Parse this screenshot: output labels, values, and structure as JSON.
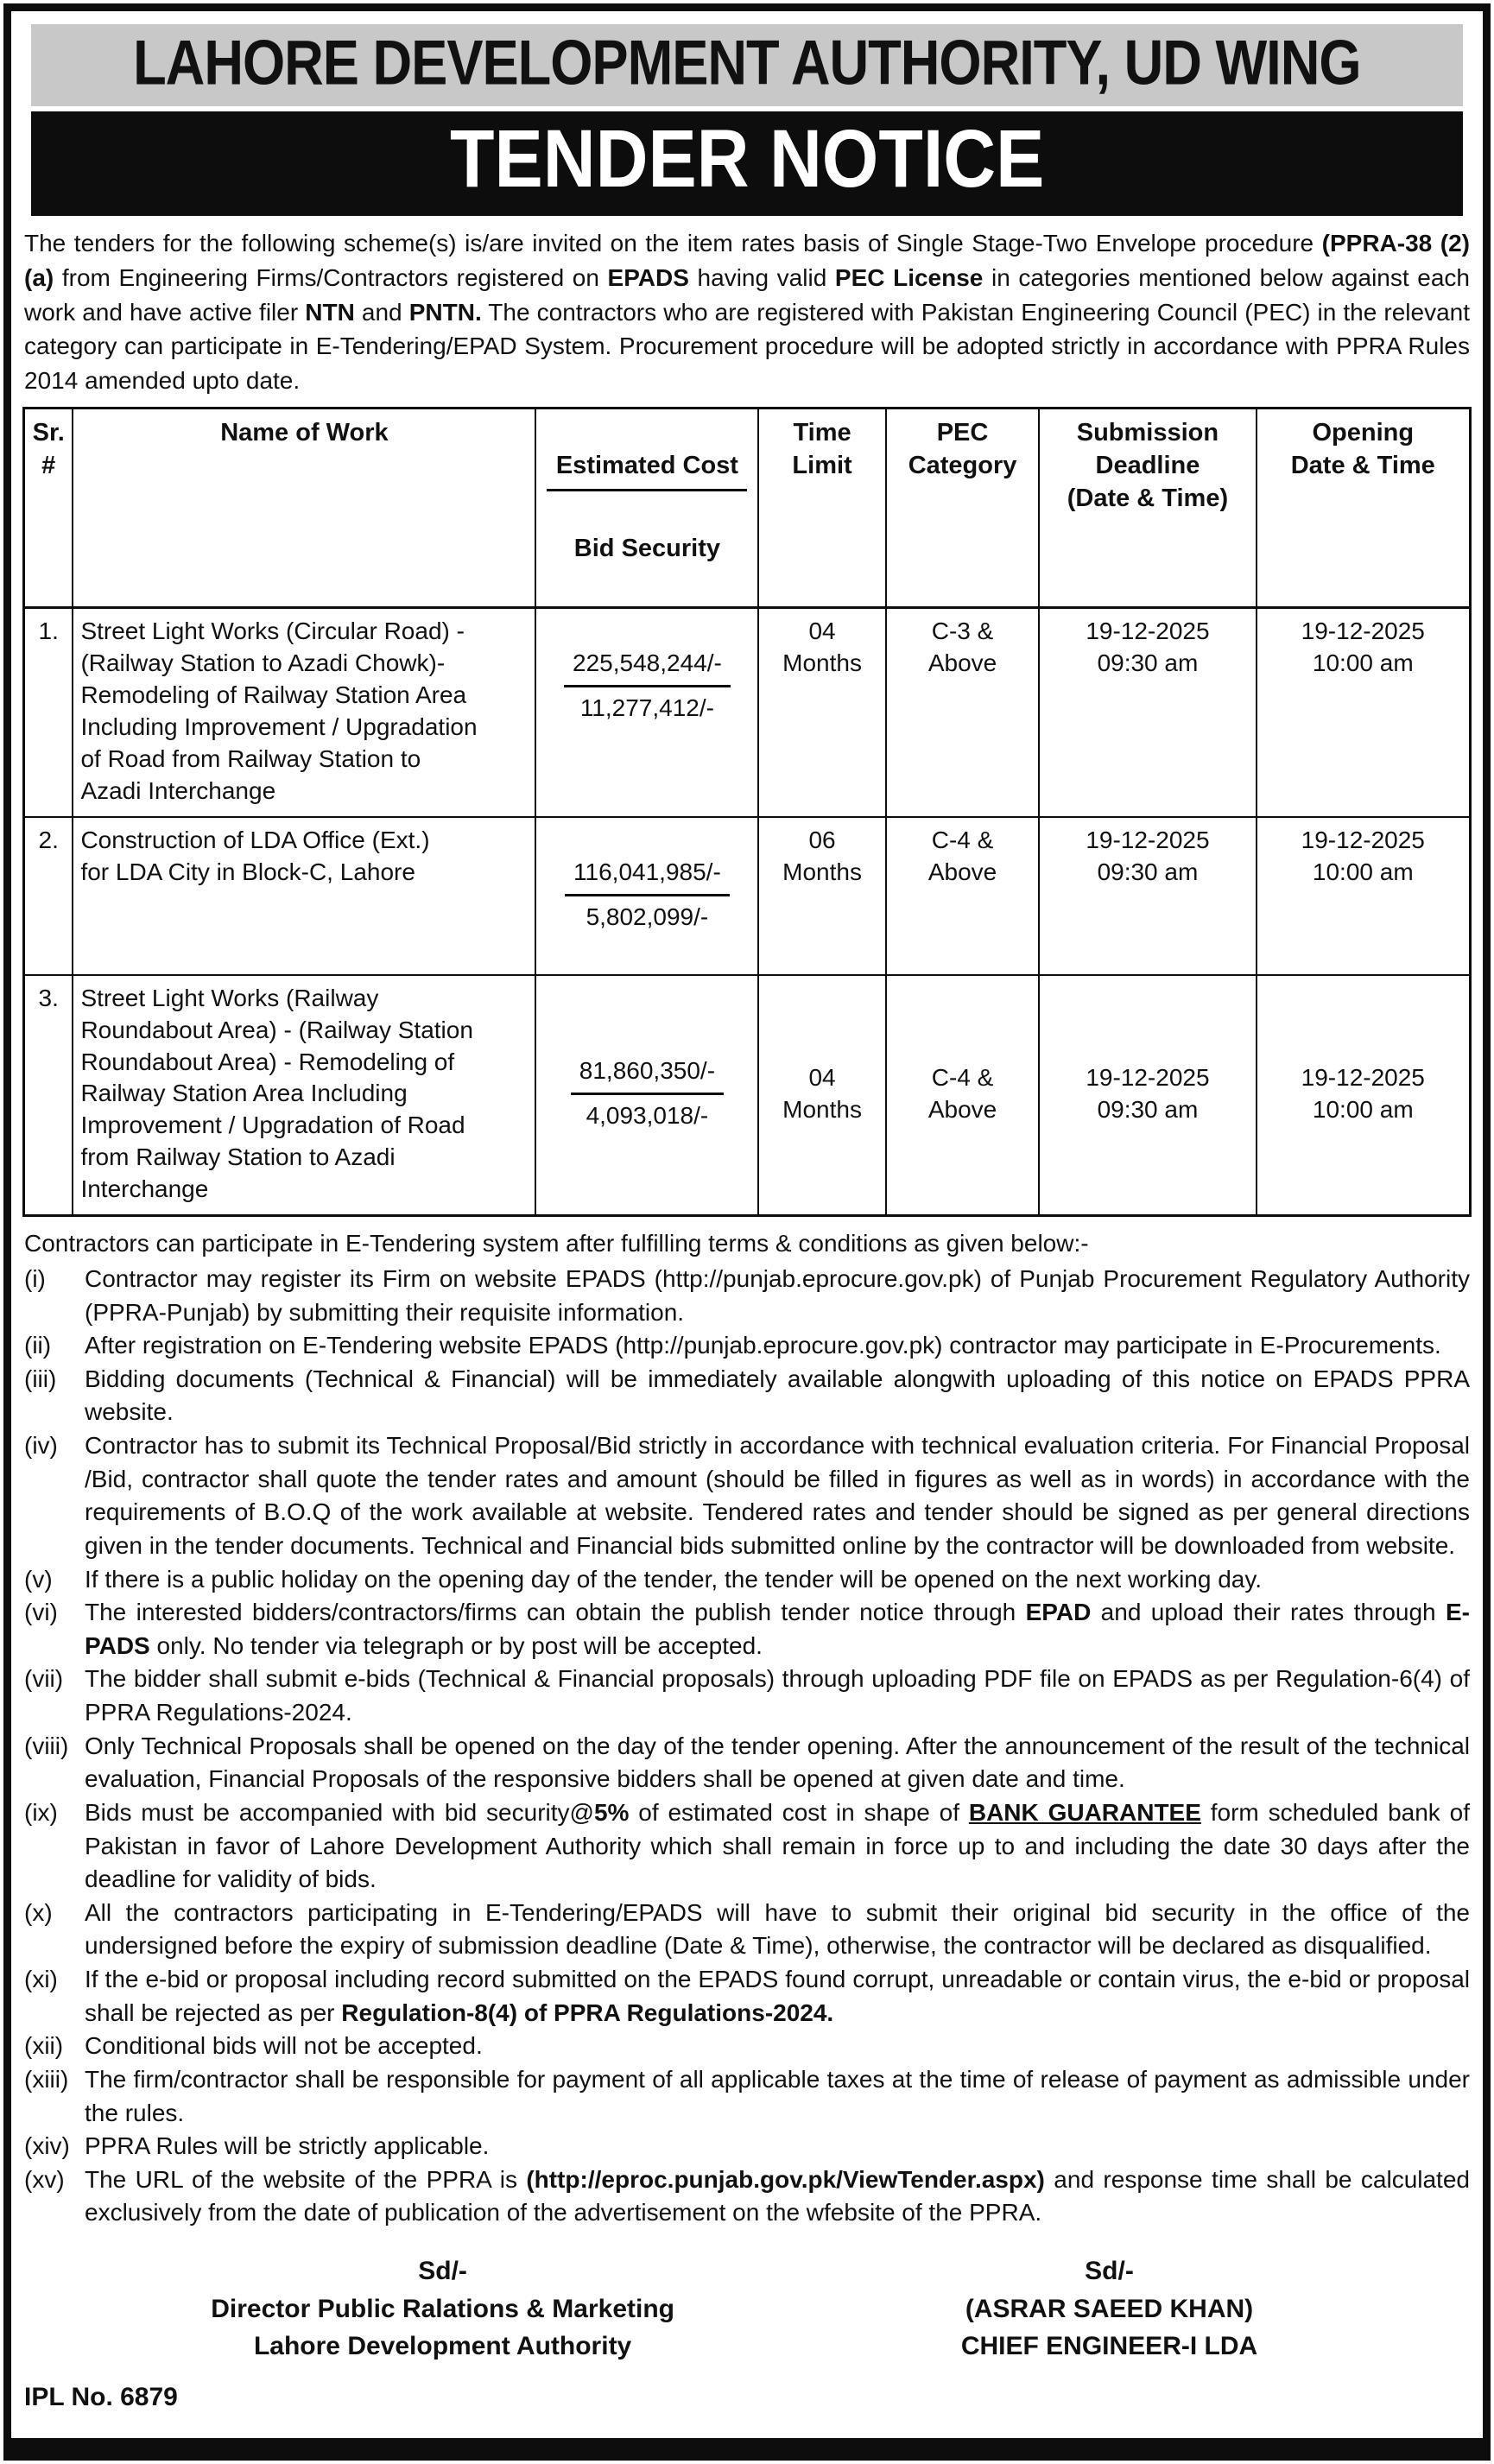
{
  "header": {
    "authority_title": "LAHORE DEVELOPMENT AUTHORITY, UD WING",
    "notice_title": "TENDER NOTICE"
  },
  "intro_segments": [
    {
      "t": "The tenders for the following scheme(s) is/are invited on the item rates basis of Single Stage-Two Envelope procedure "
    },
    {
      "t": "(PPRA-38 (2) (a)",
      "b": true
    },
    {
      "t": " from Engineering Firms/Contractors registered on "
    },
    {
      "t": "EPADS",
      "b": true
    },
    {
      "t": " having valid "
    },
    {
      "t": "PEC License",
      "b": true
    },
    {
      "t": " in categories mentioned below against each work and have active filer "
    },
    {
      "t": "NTN",
      "b": true
    },
    {
      "t": " and "
    },
    {
      "t": "PNTN.",
      "b": true
    },
    {
      "t": " The contractors who are registered with Pakistan Engineering Council (PEC) in the relevant category can participate in E-Tendering/EPAD System. Procurement procedure will be adopted strictly in accordance with PPRA Rules 2014 amended upto date."
    }
  ],
  "table": {
    "headers": {
      "sr": "Sr.\n#",
      "name": "Name of Work",
      "est_cost": "Estimated Cost",
      "bid_security": "Bid Security",
      "time": "Time\nLimit",
      "pec": "PEC\nCategory",
      "submission": "Submission\nDeadline\n(Date & Time)",
      "opening": "Opening\nDate & Time"
    },
    "rows": [
      {
        "sr": "1.",
        "name": "Street Light Works (Circular Road) -\n(Railway Station to Azadi Chowk)-\nRemodeling of Railway Station Area\nIncluding Improvement / Upgradation\nof Road from Railway Station to\nAzadi Interchange",
        "estimated_cost": "225,548,244/-",
        "bid_security": "11,277,412/-",
        "time_limit": "04\nMonths",
        "pec_category": "C-3 &\nAbove",
        "submission_deadline": "19-12-2025\n09:30 am",
        "opening": "19-12-2025\n10:00 am"
      },
      {
        "sr": "2.",
        "name": "Construction of LDA Office (Ext.)\nfor LDA City in Block-C, Lahore",
        "estimated_cost": "116,041,985/-",
        "bid_security": "5,802,099/-",
        "time_limit": "06\nMonths",
        "pec_category": "C-4 &\nAbove",
        "submission_deadline": "19-12-2025\n09:30 am",
        "opening": "19-12-2025\n10:00 am"
      },
      {
        "sr": "3.",
        "name": "Street Light Works (Railway\nRoundabout Area) - (Railway Station\nRoundabout Area) - Remodeling of\nRailway Station Area Including\nImprovement / Upgradation of Road\nfrom Railway Station to Azadi\nInterchange",
        "estimated_cost": "81,860,350/-",
        "bid_security": "4,093,018/-",
        "time_limit": "04\nMonths",
        "pec_category": "C-4 &\nAbove",
        "submission_deadline": "19-12-2025\n09:30 am",
        "opening": "19-12-2025\n10:00 am"
      }
    ]
  },
  "terms_intro": "Contractors can participate in E-Tendering system after fulfilling terms & conditions as given below:-",
  "terms": [
    {
      "num": "(i)",
      "segments": [
        {
          "t": "Contractor may register its Firm on website EPADS (http://punjab.eprocure.gov.pk) of Punjab Procurement Regulatory Authority (PPRA-Punjab) by submitting their requisite information."
        }
      ]
    },
    {
      "num": "(ii)",
      "segments": [
        {
          "t": "After registration on E-Tendering website EPADS (http://punjab.eprocure.gov.pk) contractor may participate in E-Procurements."
        }
      ]
    },
    {
      "num": "(iii)",
      "segments": [
        {
          "t": "Bidding documents (Technical & Financial) will be immediately available alongwith uploading of this notice on EPADS PPRA website."
        }
      ]
    },
    {
      "num": "(iv)",
      "segments": [
        {
          "t": "Contractor has to submit its Technical Proposal/Bid strictly in accordance with technical evaluation criteria. For Financial Proposal /Bid, contractor shall quote the tender rates and amount (should be filled in figures as well as in words) in accordance with the requirements of B.O.Q of the work available at website. Tendered rates and tender should be signed as per general directions given in the tender documents. Technical and Financial bids submitted online by the contractor will be downloaded from website."
        }
      ]
    },
    {
      "num": "(v)",
      "segments": [
        {
          "t": "If there is a public holiday on the opening day of the tender, the tender will be opened on the next working day."
        }
      ]
    },
    {
      "num": "(vi)",
      "segments": [
        {
          "t": "The interested bidders/contractors/firms can obtain the publish tender notice through "
        },
        {
          "t": "EPAD",
          "b": true
        },
        {
          "t": " and upload their rates through "
        },
        {
          "t": "E-PADS",
          "b": true
        },
        {
          "t": " only. No tender via telegraph or by post will be accepted."
        }
      ]
    },
    {
      "num": "(vii)",
      "segments": [
        {
          "t": "The bidder shall submit e-bids (Technical & Financial proposals) through uploading PDF file on EPADS as per Regulation-6(4) of PPRA Regulations-2024."
        }
      ]
    },
    {
      "num": "(viii)",
      "segments": [
        {
          "t": "Only Technical Proposals shall be opened on the day of the tender opening. After the announcement of the result of the technical evaluation, Financial Proposals of the responsive bidders shall be opened at given date and time."
        }
      ]
    },
    {
      "num": "(ix)",
      "segments": [
        {
          "t": "Bids must be accompanied with bid security@"
        },
        {
          "t": "5%",
          "b": true
        },
        {
          "t": " of estimated cost in shape of "
        },
        {
          "t": "BANK GUARANTEE",
          "b": true,
          "u": true
        },
        {
          "t": " form scheduled bank of Pakistan in favor of Lahore Development Authority which shall remain in force up to and including the date 30 days after the deadline for validity of bids."
        }
      ]
    },
    {
      "num": "(x)",
      "segments": [
        {
          "t": "All the contractors participating in E-Tendering/EPADS will have to submit their original bid security in the office of the undersigned before the expiry of submission deadline (Date & Time), otherwise, the contractor will be declared as disqualified."
        }
      ]
    },
    {
      "num": "(xi)",
      "segments": [
        {
          "t": "If the e-bid or proposal including record submitted on the EPADS found corrupt, unreadable or contain virus, the e-bid or proposal shall be rejected as per "
        },
        {
          "t": "Regulation-8(4) of PPRA Regulations-2024.",
          "b": true
        }
      ]
    },
    {
      "num": "(xii)",
      "segments": [
        {
          "t": "Conditional bids will not be accepted."
        }
      ]
    },
    {
      "num": "(xiii)",
      "segments": [
        {
          "t": "The firm/contractor shall be responsible for payment of all applicable taxes at the time of release of payment as admissible under the rules."
        }
      ]
    },
    {
      "num": "(xiv)",
      "segments": [
        {
          "t": "PPRA Rules will be strictly applicable."
        }
      ]
    },
    {
      "num": "(xv)",
      "segments": [
        {
          "t": "The URL of the website of the PPRA is "
        },
        {
          "t": "(http://eproc.punjab.gov.pk/ViewTender.aspx)",
          "b": true
        },
        {
          "t": " and response time shall be calculated exclusively from the date of publication of the advertisement on the wfebsite of the PPRA."
        }
      ]
    }
  ],
  "signatures": {
    "left": {
      "sd": "Sd/-",
      "line1": "Director Public Ralations & Marketing",
      "line2": "Lahore Development Authority"
    },
    "right": {
      "sd": "Sd/-",
      "line1": "(ASRAR SAEED KHAN)",
      "line2": "CHIEF ENGINEER-I LDA"
    }
  },
  "footer": {
    "ipl_no": "IPL No. 6879"
  },
  "colors": {
    "frame": "#0d0d0d",
    "header_bg": "#c8c8c8",
    "band_bg": "#0d0d0d",
    "band_text": "#ffffff"
  }
}
